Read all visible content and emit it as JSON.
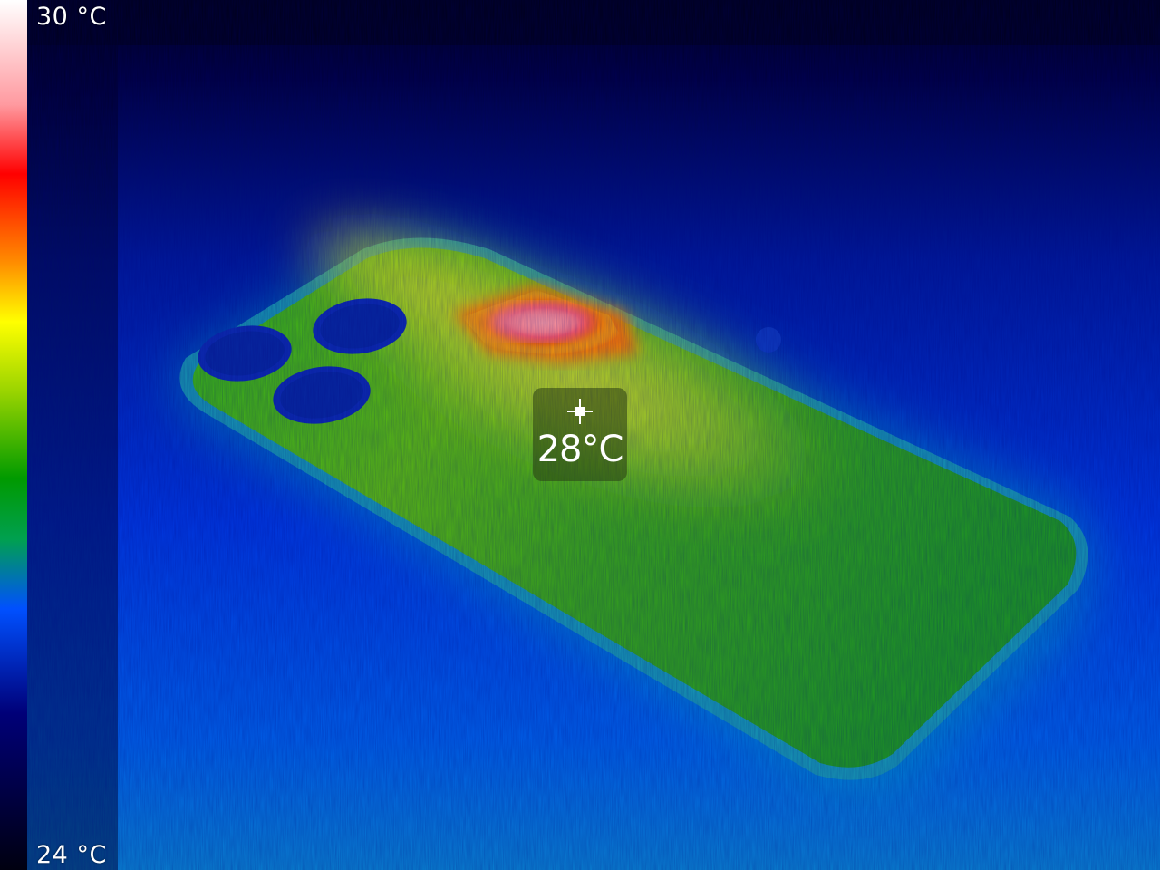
{
  "scale": {
    "max_label": "30 °C",
    "min_label": "24 °C",
    "gradient_colors": [
      "#ffffff",
      "#ff9aa0",
      "#ff0000",
      "#ff8a00",
      "#ffff00",
      "#9ad400",
      "#009a00",
      "#00a050",
      "#0050ff",
      "#000078",
      "#000010"
    ]
  },
  "spot": {
    "value_label": "28°C",
    "icon": "crosshair-icon"
  },
  "palette": {
    "background": "#000010",
    "cold": "#0030e0",
    "mid": "#2aa010",
    "warm": "#e8e030",
    "hot": "#ff1020"
  }
}
